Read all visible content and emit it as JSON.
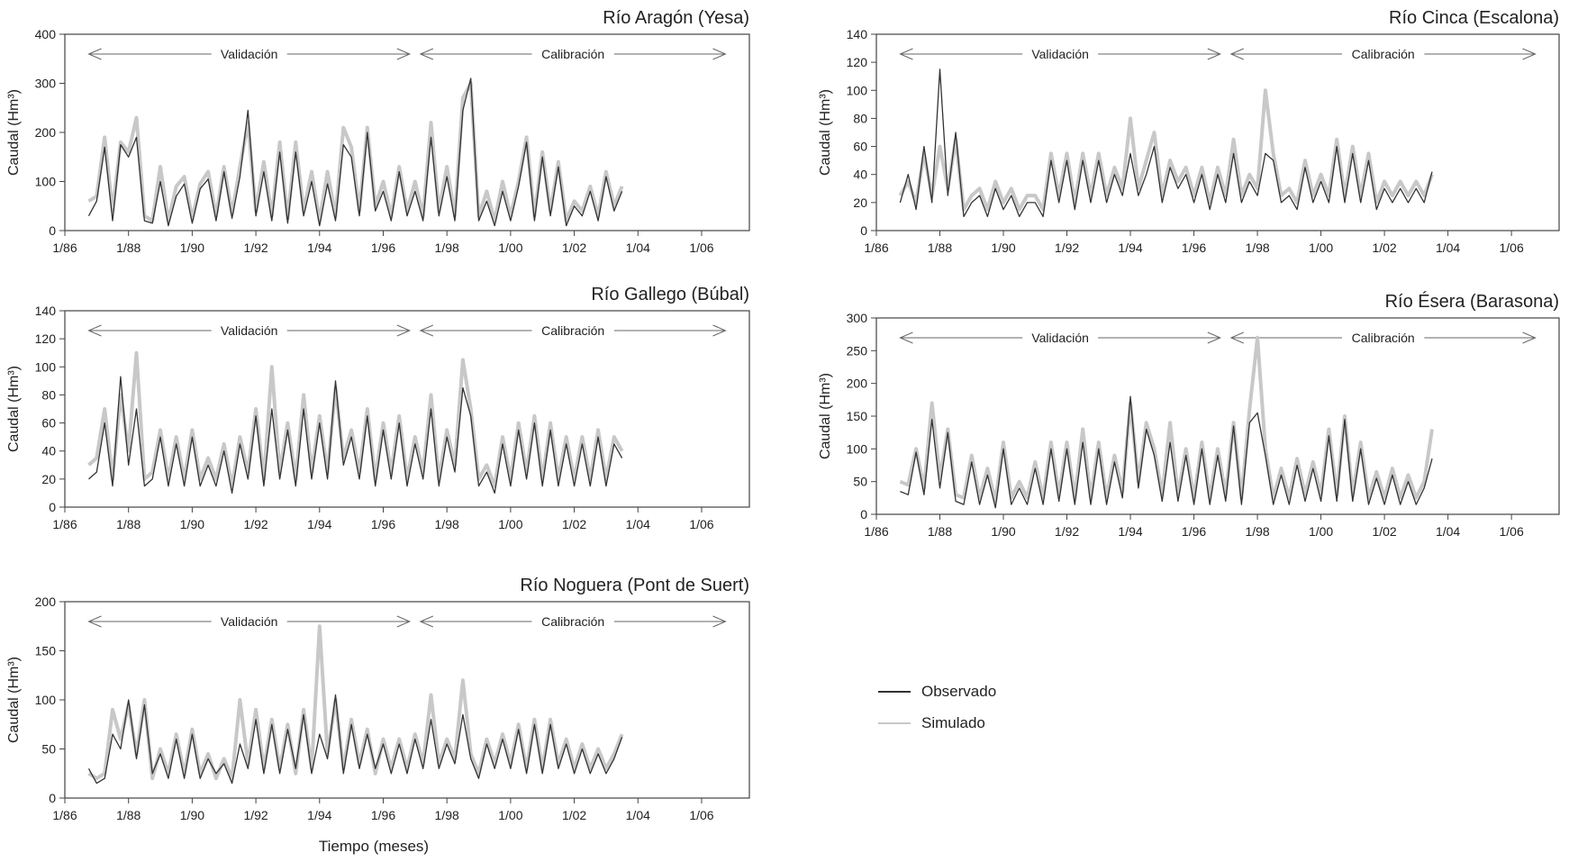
{
  "figure": {
    "xlabel": "Tiempo (meses)",
    "legend": [
      {
        "label": "Observado",
        "color": "#333333"
      },
      {
        "label": "Simulado",
        "color": "#c8c8c8"
      }
    ]
  },
  "chart_data": [
    {
      "type": "line",
      "title": "Río Aragón (Yesa)",
      "ylabel": "Caudal (Hm³)",
      "ylim": [
        0,
        400
      ],
      "yticks": [
        0,
        100,
        200,
        300,
        400
      ],
      "xlim": [
        1986.0,
        2007.5
      ],
      "xticks": [
        "1/86",
        "1/88",
        "1/90",
        "1/92",
        "1/94",
        "1/96",
        "1/98",
        "1/00",
        "1/02",
        "1/04",
        "1/06"
      ],
      "xtick_values": [
        1986,
        1988,
        1990,
        1992,
        1994,
        1996,
        1998,
        2000,
        2002,
        2004,
        2006
      ],
      "periods": [
        {
          "label": "Validación",
          "from": 1986.75,
          "to": 1997.0
        },
        {
          "label": "Calibración",
          "from": 1997.0,
          "to": 2006.75
        }
      ],
      "series": [
        {
          "name": "Observado",
          "x_start": 1986.75,
          "step": 0.25,
          "values": [
            30,
            60,
            170,
            20,
            175,
            150,
            190,
            20,
            15,
            100,
            10,
            70,
            95,
            15,
            85,
            105,
            20,
            120,
            25,
            110,
            245,
            30,
            120,
            20,
            160,
            15,
            160,
            30,
            100,
            10,
            95,
            20,
            175,
            150,
            30,
            200,
            40,
            80,
            20,
            120,
            30,
            80,
            20,
            190,
            30,
            110,
            20,
            245,
            310,
            20,
            60,
            10,
            80,
            20,
            90,
            180,
            20,
            150,
            30,
            130,
            10,
            50,
            30,
            80,
            20,
            110,
            40,
            80
          ]
        },
        {
          "name": "Simulado",
          "x_start": 1986.75,
          "step": 0.25,
          "values": [
            60,
            70,
            190,
            40,
            180,
            160,
            230,
            30,
            20,
            130,
            20,
            90,
            110,
            25,
            95,
            120,
            30,
            130,
            35,
            130,
            220,
            40,
            140,
            30,
            180,
            25,
            180,
            40,
            120,
            20,
            120,
            30,
            210,
            170,
            40,
            210,
            50,
            100,
            30,
            130,
            40,
            100,
            30,
            220,
            40,
            130,
            30,
            270,
            300,
            30,
            80,
            20,
            100,
            30,
            100,
            190,
            30,
            160,
            40,
            140,
            20,
            60,
            40,
            90,
            30,
            120,
            50,
            90
          ]
        }
      ]
    },
    {
      "type": "line",
      "title": "Río Cinca (Escalona)",
      "ylabel": "Caudal (Hm³)",
      "ylim": [
        0,
        140
      ],
      "yticks": [
        0,
        20,
        40,
        60,
        80,
        100,
        120,
        140
      ],
      "xlim": [
        1986.0,
        2007.5
      ],
      "xticks": [
        "1/86",
        "1/88",
        "1/90",
        "1/92",
        "1/94",
        "1/96",
        "1/98",
        "1/00",
        "1/02",
        "1/04",
        "1/06"
      ],
      "xtick_values": [
        1986,
        1988,
        1990,
        1992,
        1994,
        1996,
        1998,
        2000,
        2002,
        2004,
        2006
      ],
      "periods": [
        {
          "label": "Validación",
          "from": 1986.75,
          "to": 1997.0
        },
        {
          "label": "Calibración",
          "from": 1997.0,
          "to": 2006.75
        }
      ],
      "series": [
        {
          "name": "Observado",
          "x_start": 1986.75,
          "step": 0.25,
          "values": [
            20,
            40,
            15,
            60,
            20,
            115,
            25,
            70,
            10,
            20,
            25,
            10,
            30,
            15,
            25,
            10,
            20,
            20,
            10,
            50,
            20,
            50,
            15,
            50,
            20,
            50,
            20,
            40,
            25,
            55,
            25,
            40,
            60,
            20,
            45,
            30,
            40,
            20,
            40,
            15,
            40,
            20,
            55,
            20,
            35,
            25,
            55,
            50,
            20,
            25,
            15,
            45,
            20,
            35,
            20,
            60,
            20,
            55,
            20,
            50,
            15,
            30,
            20,
            30,
            20,
            30,
            20,
            42
          ]
        },
        {
          "name": "Simulado",
          "x_start": 1986.75,
          "step": 0.25,
          "values": [
            25,
            35,
            20,
            55,
            25,
            60,
            30,
            65,
            15,
            25,
            30,
            15,
            35,
            20,
            30,
            15,
            25,
            25,
            15,
            55,
            25,
            55,
            20,
            55,
            25,
            55,
            25,
            45,
            30,
            80,
            30,
            50,
            70,
            25,
            50,
            35,
            45,
            25,
            45,
            20,
            45,
            25,
            65,
            25,
            40,
            30,
            100,
            55,
            25,
            30,
            20,
            50,
            25,
            40,
            25,
            65,
            25,
            60,
            25,
            55,
            20,
            35,
            25,
            35,
            25,
            35,
            25,
            40
          ]
        }
      ]
    },
    {
      "type": "line",
      "title": "Río Gallego (Búbal)",
      "ylabel": "Caudal (Hm³)",
      "ylim": [
        0,
        140
      ],
      "yticks": [
        0,
        20,
        40,
        60,
        80,
        100,
        120,
        140
      ],
      "xlim": [
        1986.0,
        2007.5
      ],
      "xticks": [
        "1/86",
        "1/88",
        "1/90",
        "1/92",
        "1/94",
        "1/96",
        "1/98",
        "1/00",
        "1/02",
        "1/04",
        "1/06"
      ],
      "xtick_values": [
        1986,
        1988,
        1990,
        1992,
        1994,
        1996,
        1998,
        2000,
        2002,
        2004,
        2006
      ],
      "periods": [
        {
          "label": "Validación",
          "from": 1986.75,
          "to": 1997.0
        },
        {
          "label": "Calibración",
          "from": 1997.0,
          "to": 2006.75
        }
      ],
      "series": [
        {
          "name": "Observado",
          "x_start": 1986.75,
          "step": 0.25,
          "values": [
            20,
            25,
            60,
            15,
            93,
            30,
            70,
            15,
            20,
            50,
            15,
            45,
            15,
            50,
            15,
            30,
            15,
            40,
            10,
            45,
            20,
            65,
            15,
            70,
            20,
            55,
            15,
            70,
            20,
            60,
            20,
            90,
            30,
            50,
            20,
            65,
            15,
            55,
            20,
            60,
            15,
            45,
            20,
            70,
            15,
            50,
            25,
            85,
            65,
            15,
            25,
            10,
            45,
            15,
            55,
            20,
            60,
            15,
            55,
            15,
            45,
            15,
            45,
            15,
            50,
            15,
            45,
            35
          ]
        },
        {
          "name": "Simulado",
          "x_start": 1986.75,
          "step": 0.25,
          "values": [
            30,
            35,
            70,
            20,
            80,
            40,
            110,
            20,
            25,
            55,
            20,
            50,
            20,
            55,
            20,
            35,
            20,
            45,
            15,
            50,
            25,
            70,
            20,
            100,
            25,
            60,
            20,
            80,
            25,
            65,
            25,
            85,
            35,
            55,
            25,
            70,
            20,
            60,
            25,
            65,
            20,
            50,
            25,
            80,
            20,
            55,
            30,
            105,
            70,
            20,
            30,
            15,
            50,
            20,
            60,
            25,
            65,
            20,
            60,
            20,
            50,
            20,
            50,
            20,
            55,
            20,
            50,
            40
          ]
        }
      ]
    },
    {
      "type": "line",
      "title": "Río Ésera (Barasona)",
      "ylabel": "Caudal (Hm³)",
      "ylim": [
        0,
        300
      ],
      "yticks": [
        0,
        50,
        100,
        150,
        200,
        250,
        300
      ],
      "xlim": [
        1986.0,
        2007.5
      ],
      "xticks": [
        "1/86",
        "1/88",
        "1/90",
        "1/92",
        "1/94",
        "1/96",
        "1/98",
        "1/00",
        "1/02",
        "1/04",
        "1/06"
      ],
      "xtick_values": [
        1986,
        1988,
        1990,
        1992,
        1994,
        1996,
        1998,
        2000,
        2002,
        2004,
        2006
      ],
      "periods": [
        {
          "label": "Validación",
          "from": 1986.75,
          "to": 1997.0
        },
        {
          "label": "Calibración",
          "from": 1997.0,
          "to": 2006.75
        }
      ],
      "series": [
        {
          "name": "Observado",
          "x_start": 1986.75,
          "step": 0.25,
          "values": [
            35,
            30,
            95,
            30,
            145,
            40,
            125,
            20,
            15,
            80,
            15,
            60,
            10,
            100,
            15,
            40,
            15,
            70,
            15,
            100,
            20,
            100,
            15,
            110,
            15,
            100,
            15,
            80,
            25,
            180,
            40,
            130,
            90,
            20,
            110,
            20,
            90,
            15,
            100,
            15,
            90,
            20,
            135,
            15,
            140,
            155,
            90,
            15,
            60,
            15,
            75,
            20,
            70,
            20,
            120,
            20,
            145,
            20,
            100,
            15,
            55,
            15,
            60,
            15,
            50,
            15,
            40,
            85
          ]
        },
        {
          "name": "Simulado",
          "x_start": 1986.75,
          "step": 0.25,
          "values": [
            50,
            45,
            100,
            40,
            170,
            55,
            130,
            30,
            25,
            90,
            25,
            70,
            20,
            110,
            25,
            50,
            25,
            80,
            25,
            110,
            30,
            110,
            25,
            130,
            25,
            110,
            25,
            90,
            35,
            170,
            50,
            140,
            100,
            30,
            140,
            30,
            100,
            25,
            110,
            25,
            100,
            30,
            140,
            25,
            160,
            270,
            100,
            25,
            70,
            25,
            85,
            30,
            80,
            30,
            130,
            30,
            150,
            30,
            110,
            25,
            65,
            25,
            70,
            25,
            60,
            25,
            50,
            130
          ]
        }
      ]
    },
    {
      "type": "line",
      "title": "Río Noguera (Pont de Suert)",
      "ylabel": "Caudal (Hm³)",
      "ylim": [
        0,
        200
      ],
      "yticks": [
        0,
        50,
        100,
        150,
        200
      ],
      "xlim": [
        1986.0,
        2007.5
      ],
      "xticks": [
        "1/86",
        "1/88",
        "1/90",
        "1/92",
        "1/94",
        "1/96",
        "1/98",
        "1/00",
        "1/02",
        "1/04",
        "1/06"
      ],
      "xtick_values": [
        1986,
        1988,
        1990,
        1992,
        1994,
        1996,
        1998,
        2000,
        2002,
        2004,
        2006
      ],
      "periods": [
        {
          "label": "Validación",
          "from": 1986.75,
          "to": 1997.0
        },
        {
          "label": "Calibración",
          "from": 1997.0,
          "to": 2006.75
        }
      ],
      "series": [
        {
          "name": "Observado",
          "x_start": 1986.75,
          "step": 0.25,
          "values": [
            30,
            15,
            20,
            65,
            50,
            100,
            40,
            95,
            25,
            45,
            20,
            60,
            20,
            65,
            20,
            40,
            25,
            35,
            15,
            55,
            30,
            80,
            25,
            75,
            25,
            70,
            30,
            85,
            25,
            65,
            40,
            105,
            25,
            75,
            30,
            65,
            30,
            55,
            25,
            55,
            25,
            60,
            30,
            80,
            30,
            55,
            35,
            85,
            40,
            20,
            55,
            30,
            60,
            30,
            70,
            25,
            75,
            25,
            75,
            30,
            55,
            25,
            50,
            25,
            45,
            25,
            40,
            62
          ]
        },
        {
          "name": "Simulado",
          "x_start": 1986.75,
          "step": 0.25,
          "values": [
            25,
            20,
            25,
            90,
            60,
            95,
            45,
            100,
            20,
            50,
            25,
            65,
            25,
            70,
            25,
            45,
            20,
            40,
            20,
            100,
            35,
            90,
            30,
            80,
            30,
            75,
            25,
            90,
            30,
            175,
            45,
            100,
            30,
            80,
            35,
            70,
            25,
            60,
            30,
            60,
            30,
            65,
            35,
            105,
            35,
            60,
            40,
            120,
            45,
            25,
            60,
            35,
            65,
            35,
            75,
            30,
            80,
            30,
            80,
            35,
            60,
            30,
            55,
            30,
            50,
            30,
            45,
            65
          ]
        }
      ]
    }
  ]
}
